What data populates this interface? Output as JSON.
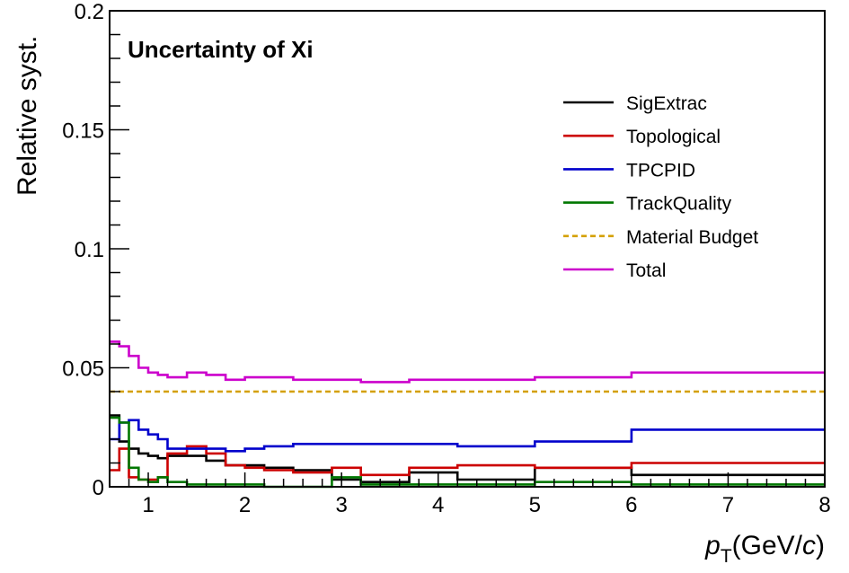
{
  "chart_data": {
    "type": "line",
    "title": "Uncertainty of Xi",
    "xlabel": "p_T(GeV/c)",
    "xlabel_parts": {
      "main": "p",
      "sub": "T",
      "pre_unit": "(GeV/",
      "unit_var": "c",
      "post_unit": ")"
    },
    "ylabel": "Relative syst.",
    "xlim": [
      0.6,
      8
    ],
    "ylim": [
      0,
      0.2
    ],
    "x_ticks": [
      "1",
      "2",
      "3",
      "4",
      "5",
      "6",
      "7",
      "8"
    ],
    "y_ticks": [
      "0",
      "0.05",
      "0.1",
      "0.15",
      "0.2"
    ],
    "grid": false,
    "legend_position": "top-right",
    "bin_edges": [
      0.6,
      0.7,
      0.8,
      0.9,
      1.0,
      1.1,
      1.2,
      1.4,
      1.6,
      1.8,
      2.0,
      2.2,
      2.5,
      2.9,
      3.2,
      3.7,
      4.2,
      5.0,
      6.0,
      8.0
    ],
    "series": [
      {
        "name": "SigExtrac",
        "color": "#000000",
        "dashed": false,
        "values": [
          0.03,
          0.019,
          0.016,
          0.014,
          0.013,
          0.012,
          0.013,
          0.013,
          0.011,
          0.009,
          0.009,
          0.008,
          0.007,
          0.003,
          0.002,
          0.006,
          0.003,
          0.008,
          0.005
        ]
      },
      {
        "name": "Topological",
        "color": "#cc0000",
        "dashed": false,
        "values": [
          0.007,
          0.016,
          0.004,
          0.003,
          0.003,
          0.004,
          0.014,
          0.017,
          0.014,
          0.009,
          0.008,
          0.007,
          0.006,
          0.008,
          0.005,
          0.008,
          0.009,
          0.008,
          0.01
        ]
      },
      {
        "name": "TPCPID",
        "color": "#0000cc",
        "dashed": false,
        "values": [
          0.02,
          0.027,
          0.028,
          0.024,
          0.022,
          0.02,
          0.016,
          0.016,
          0.016,
          0.015,
          0.016,
          0.017,
          0.018,
          0.018,
          0.018,
          0.018,
          0.017,
          0.019,
          0.024
        ]
      },
      {
        "name": "TrackQuality",
        "color": "#007700",
        "dashed": false,
        "values": [
          0.029,
          0.027,
          0.008,
          0.003,
          0.002,
          0.004,
          0.002,
          0.001,
          0.001,
          0.001,
          0.001,
          0.0,
          0.0,
          0.004,
          0.001,
          0.001,
          0.001,
          0.002,
          0.001
        ]
      },
      {
        "name": "Material Budget",
        "color": "#d4a000",
        "dashed": true,
        "values": [
          0.04,
          0.04,
          0.04,
          0.04,
          0.04,
          0.04,
          0.04,
          0.04,
          0.04,
          0.04,
          0.04,
          0.04,
          0.04,
          0.04,
          0.04,
          0.04,
          0.04,
          0.04,
          0.04
        ]
      },
      {
        "name": "Total",
        "color": "#cc00cc",
        "dashed": false,
        "values": [
          0.061,
          0.059,
          0.055,
          0.05,
          0.048,
          0.047,
          0.046,
          0.048,
          0.047,
          0.045,
          0.046,
          0.046,
          0.045,
          0.045,
          0.044,
          0.045,
          0.045,
          0.046,
          0.048
        ]
      }
    ]
  }
}
